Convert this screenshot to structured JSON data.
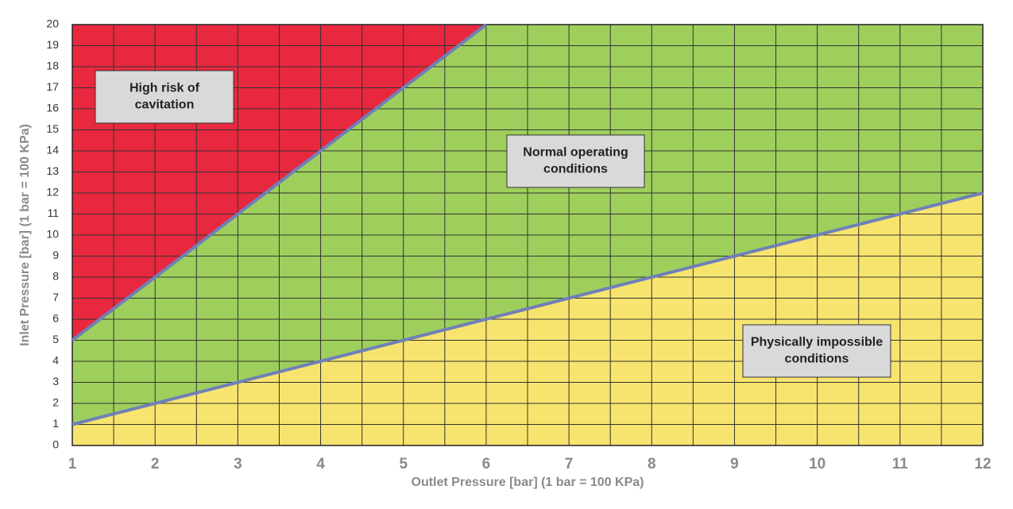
{
  "chart_data": {
    "type": "region",
    "x_label": "Outlet Pressure [bar] (1 bar = 100 KPa)",
    "y_label": "Inlet Pressure [bar] (1 bar = 100 KPa)",
    "xlim": [
      1,
      12
    ],
    "ylim": [
      0,
      20
    ],
    "xticks": [
      1,
      2,
      3,
      4,
      5,
      6,
      7,
      8,
      9,
      10,
      11,
      12
    ],
    "yticks": [
      0,
      1,
      2,
      3,
      4,
      5,
      6,
      7,
      8,
      9,
      10,
      11,
      12,
      13,
      14,
      15,
      16,
      17,
      18,
      19,
      20
    ],
    "grid": true,
    "series": [
      {
        "color": "#6f80b8",
        "x": [
          1,
          6
        ],
        "values": [
          5,
          20
        ]
      },
      {
        "color": "#6f80b8",
        "x": [
          1,
          12
        ],
        "values": [
          1,
          12
        ]
      }
    ],
    "regions": [
      {
        "label": [
          "High risk of",
          "cavitation"
        ],
        "color": "#e8283f"
      },
      {
        "label": [
          "Normal operating",
          "conditions"
        ],
        "color": "#9ecf5c"
      },
      {
        "label": [
          "Physically impossible",
          "conditions"
        ],
        "color": "#f7e46f"
      }
    ]
  }
}
